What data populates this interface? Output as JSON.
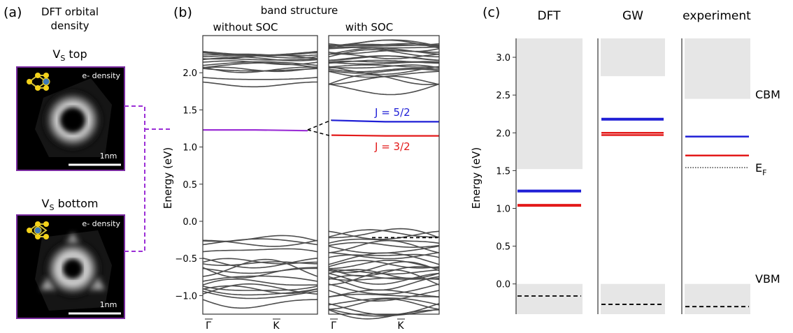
{
  "colors": {
    "band": "#4d4d4d",
    "purple": "#9b2fd6",
    "blue": "#1f1fd6",
    "red": "#e31a1a",
    "gap": "#e6e6e6",
    "dash": "#000000",
    "frame": "#7a2ba0"
  },
  "panel_a": {
    "label": "(a)",
    "title_line1": "DFT orbital",
    "title_line2": "density",
    "top_title": "V",
    "top_sub": "S",
    "top_suffix": " top",
    "bottom_title": "V",
    "bottom_sub": "S",
    "bottom_suffix": " bottom",
    "density_label": "e- density",
    "scale_label": "1nm"
  },
  "panel_b": {
    "label": "(b)",
    "title": "band structure",
    "left_title": "without SOC",
    "right_title": "with SOC",
    "j52": "J = 5/2",
    "j32": "J = 3/2",
    "k_gamma": "Γ",
    "k_k": "K"
  },
  "panel_c": {
    "label": "(c)",
    "cbm": "CBM",
    "vbm": "VBM",
    "ef": "E",
    "ef_sub": "F"
  },
  "chart_data": [
    {
      "type": "line",
      "title": "band structure",
      "ylabel": "Energy (eV)",
      "ylim": [
        -1.25,
        2.5
      ],
      "yticks": [
        -1.0,
        -0.5,
        0.0,
        0.5,
        1.0,
        1.5,
        2.0
      ],
      "ytick_labels": [
        "−1.0",
        "−0.5",
        "0.0",
        "0.5",
        "1.0",
        "1.5",
        "2.0"
      ],
      "xticks": [
        "Γ",
        "K"
      ],
      "subpanels": [
        {
          "name": "without SOC",
          "defect_level": [
            1.23,
            1.23,
            1.22
          ],
          "defect_color": "purple"
        },
        {
          "name": "with SOC",
          "defect_levels": [
            {
              "label": "J = 5/2",
              "values": [
                1.36,
                1.34,
                1.34
              ],
              "color": "blue"
            },
            {
              "label": "J = 3/2",
              "values": [
                1.16,
                1.15,
                1.15
              ],
              "color": "red"
            }
          ],
          "vbm_dashed": -0.22
        }
      ]
    },
    {
      "type": "bar",
      "ylabel": "Energy (eV)",
      "ylim": [
        -0.4,
        3.25
      ],
      "yticks": [
        0.0,
        0.5,
        1.0,
        1.5,
        2.0,
        2.5,
        3.0
      ],
      "ytick_labels": [
        "0.0",
        "0.5",
        "1.0",
        "1.5",
        "2.0",
        "2.5",
        "3.0"
      ],
      "categories": [
        "DFT",
        "GW",
        "experiment"
      ],
      "cbm": [
        1.52,
        2.75,
        2.45
      ],
      "vbm": [
        0.0,
        0.0,
        0.0
      ],
      "blue_level": [
        1.23,
        2.18,
        1.95
      ],
      "red_level": [
        1.04,
        2.0,
        1.7
      ],
      "red_level_2": [
        null,
        1.97,
        null
      ],
      "dashed_level": [
        -0.16,
        -0.27,
        -0.3
      ],
      "fermi_level": [
        null,
        null,
        1.54
      ]
    }
  ]
}
